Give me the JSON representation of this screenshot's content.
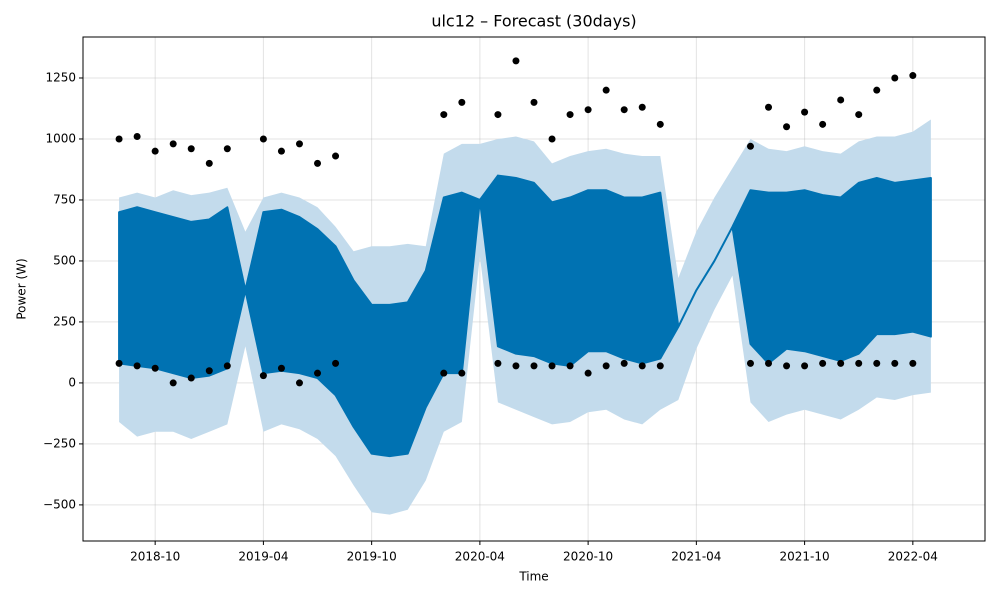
{
  "chart_data": {
    "type": "forecast",
    "title": "ulc12 – Forecast (30days)",
    "xlabel": "Time",
    "ylabel": "Power (W)",
    "x": [
      "2018-08",
      "2018-09",
      "2018-10",
      "2018-11",
      "2018-12",
      "2019-01",
      "2019-02",
      "2019-03",
      "2019-04",
      "2019-05",
      "2019-06",
      "2019-07",
      "2019-08",
      "2019-09",
      "2019-10",
      "2019-11",
      "2019-12",
      "2020-01",
      "2020-02",
      "2020-03",
      "2020-04",
      "2020-05",
      "2020-06",
      "2020-07",
      "2020-08",
      "2020-09",
      "2020-10",
      "2020-11",
      "2020-12",
      "2021-01",
      "2021-02",
      "2021-03",
      "2021-04",
      "2021-05",
      "2021-06",
      "2021-07",
      "2021-08",
      "2021-09",
      "2021-10",
      "2021-11",
      "2021-12",
      "2022-01",
      "2022-02",
      "2022-03",
      "2022-04",
      "2022-05"
    ],
    "yhat_min": [
      80,
      70,
      60,
      40,
      20,
      30,
      60,
      380,
      40,
      50,
      40,
      20,
      -50,
      -180,
      -290,
      -300,
      -290,
      -100,
      40,
      40,
      750,
      150,
      120,
      110,
      80,
      70,
      130,
      130,
      100,
      80,
      100,
      230,
      380,
      500,
      640,
      160,
      80,
      140,
      130,
      110,
      90,
      120,
      200,
      200,
      210,
      190
    ],
    "yhat_max": [
      700,
      720,
      700,
      680,
      660,
      670,
      720,
      380,
      700,
      710,
      680,
      630,
      560,
      420,
      320,
      320,
      330,
      460,
      760,
      780,
      750,
      850,
      840,
      820,
      740,
      760,
      790,
      790,
      760,
      760,
      780,
      230,
      380,
      500,
      640,
      790,
      780,
      780,
      790,
      770,
      760,
      820,
      840,
      820,
      830,
      840
    ],
    "lower": [
      -160,
      -220,
      -200,
      -200,
      -230,
      -200,
      -170,
      150,
      -200,
      -170,
      -190,
      -230,
      -300,
      -420,
      -530,
      -540,
      -520,
      -400,
      -200,
      -160,
      520,
      -80,
      -110,
      -140,
      -170,
      -160,
      -120,
      -110,
      -150,
      -170,
      -110,
      -70,
      140,
      300,
      440,
      -80,
      -160,
      -130,
      -110,
      -130,
      -150,
      -110,
      -60,
      -70,
      -50,
      -40
    ],
    "upper": [
      760,
      780,
      760,
      790,
      770,
      780,
      800,
      620,
      760,
      780,
      760,
      720,
      640,
      540,
      560,
      560,
      570,
      560,
      940,
      980,
      980,
      1000,
      1010,
      990,
      900,
      930,
      950,
      960,
      940,
      930,
      930,
      430,
      620,
      760,
      880,
      1000,
      960,
      950,
      970,
      950,
      940,
      990,
      1010,
      1010,
      1030,
      1080
    ],
    "obs_min": [
      80,
      70,
      60,
      0,
      20,
      50,
      70,
      null,
      30,
      60,
      0,
      40,
      80,
      null,
      null,
      null,
      null,
      null,
      40,
      40,
      null,
      80,
      70,
      70,
      70,
      70,
      40,
      70,
      80,
      70,
      70,
      null,
      null,
      null,
      null,
      80,
      80,
      70,
      70,
      80,
      80,
      80,
      80,
      80,
      80,
      null
    ],
    "obs_max": [
      1000,
      1010,
      950,
      980,
      960,
      900,
      960,
      null,
      1000,
      950,
      980,
      900,
      930,
      null,
      null,
      null,
      null,
      null,
      1100,
      1150,
      null,
      1100,
      1320,
      1150,
      1000,
      1100,
      1120,
      1200,
      1120,
      1130,
      1060,
      null,
      null,
      null,
      null,
      970,
      1130,
      1050,
      1110,
      1060,
      1160,
      1100,
      1200,
      1250,
      1260,
      null
    ],
    "color": "#0072b2",
    "band_color": "#c3dbec",
    "point_color": "#000000",
    "xlim": [
      "2018-06",
      "2022-08"
    ],
    "xticks": [
      "2018-10",
      "2019-04",
      "2019-10",
      "2020-04",
      "2020-10",
      "2021-04",
      "2021-10",
      "2022-04"
    ],
    "ylim": [
      -648,
      1418
    ],
    "yticks": [
      {
        "value": -500,
        "label": "−500"
      },
      {
        "value": -250,
        "label": "−250"
      },
      0,
      250,
      500,
      750,
      1000,
      1250
    ],
    "grid": true
  }
}
